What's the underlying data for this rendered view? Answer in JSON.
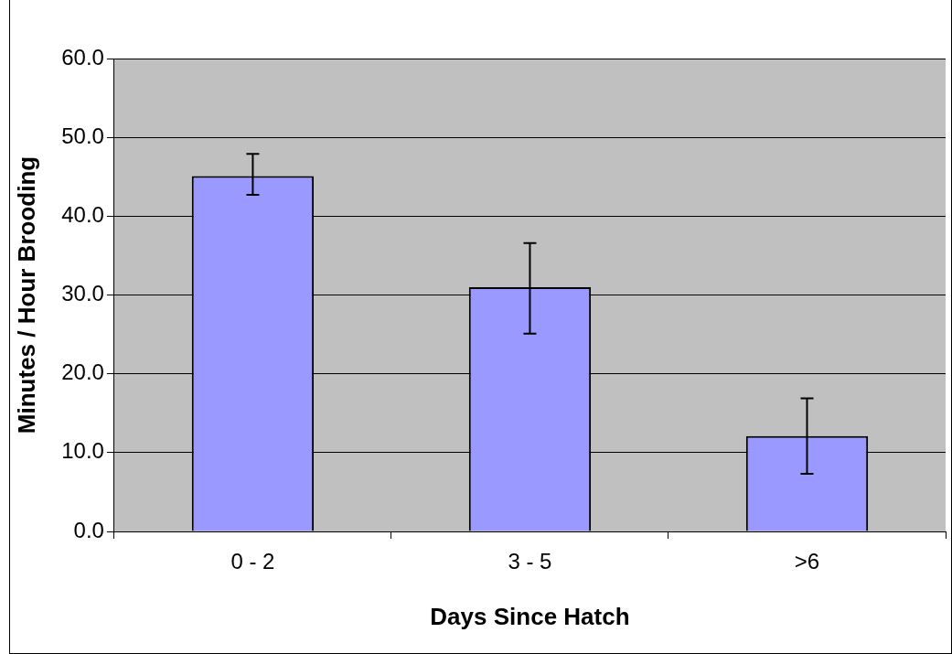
{
  "chart_data": {
    "type": "bar",
    "xlabel": "Days Since Hatch",
    "ylabel": "Minutes / Hour Brooding",
    "categories": [
      "0 - 2",
      "3 - 5",
      ">6"
    ],
    "values": [
      45.1,
      31.0,
      12.1
    ],
    "errors": [
      [
        42.7,
        47.9
      ],
      [
        25.1,
        36.6
      ],
      [
        7.3,
        16.9
      ]
    ],
    "color": "#9999ff",
    "ylim": [
      0,
      60
    ],
    "yticks": [
      {
        "value": 0,
        "label": "0.0"
      },
      {
        "value": 10,
        "label": "10.0"
      },
      {
        "value": 20,
        "label": "20.0"
      },
      {
        "value": 30,
        "label": "30.0"
      },
      {
        "value": 40,
        "label": "40.0"
      },
      {
        "value": 50,
        "label": "50.0"
      },
      {
        "value": 60,
        "label": "60.0"
      }
    ],
    "grid": "y",
    "legend": false
  }
}
